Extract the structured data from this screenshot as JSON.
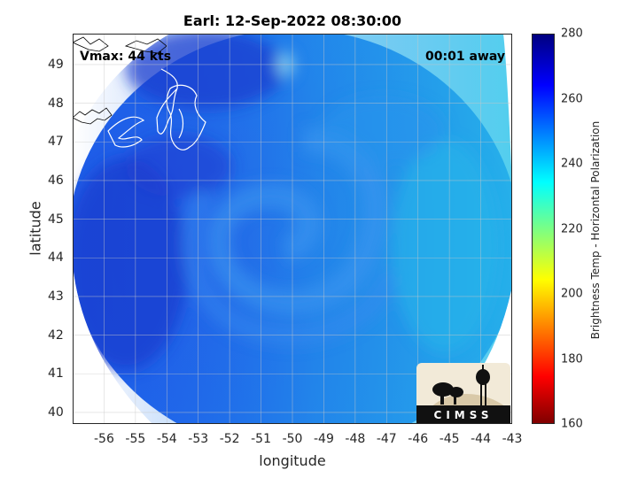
{
  "title": "Earl: 12-Sep-2022 08:30:00",
  "vmax_text": "Vmax: 44 kts",
  "away_text": "00:01 away",
  "map": {
    "xlabel": "longitude",
    "ylabel": "latitude",
    "lon_range": [
      -57,
      -43
    ],
    "lat_range": [
      39.7,
      49.8
    ],
    "lon_ticks": [
      -56,
      -55,
      -54,
      -53,
      -52,
      -51,
      -50,
      -49,
      -48,
      -47,
      -46,
      -45,
      -44,
      -43
    ],
    "lat_ticks": [
      40,
      41,
      42,
      43,
      44,
      45,
      46,
      47,
      48,
      49
    ],
    "grid": true,
    "colors": {
      "deep_blue": "#1a3fd6",
      "mid_blue": "#1f66ee",
      "cyan": "#22aeea",
      "coast": "#ffffff"
    }
  },
  "colorbar": {
    "label": "Brightness Temp - Horizontal Polarization",
    "range": [
      160,
      280
    ],
    "ticks": [
      160,
      180,
      200,
      220,
      240,
      260,
      280
    ],
    "colormap": "jet"
  },
  "logo": {
    "text": "CIMSS"
  }
}
